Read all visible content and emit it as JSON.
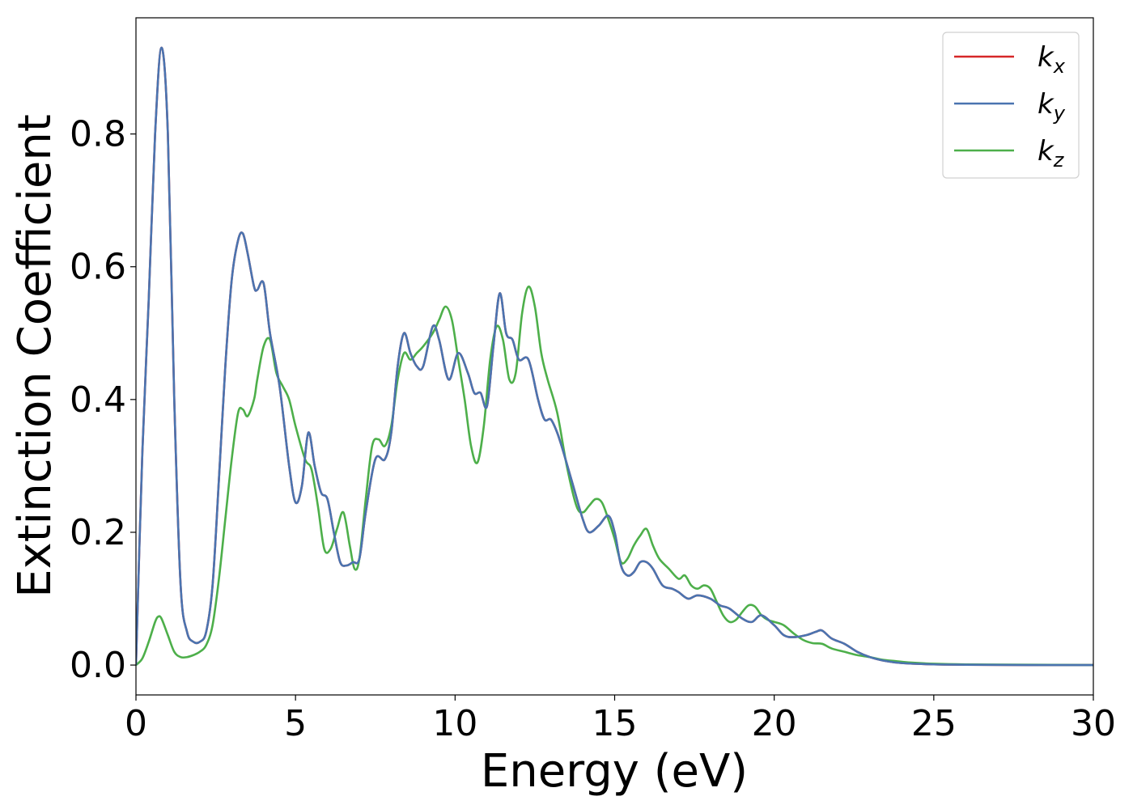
{
  "chart_data": {
    "type": "line",
    "title": "",
    "xlabel": "Energy (eV)",
    "ylabel": "Extinction Coefficient",
    "xlim": [
      0,
      30
    ],
    "ylim": [
      -0.045,
      0.975
    ],
    "xticks": [
      0,
      5,
      10,
      15,
      20,
      25,
      30
    ],
    "xtick_labels": [
      "0",
      "5",
      "10",
      "15",
      "20",
      "25",
      "30"
    ],
    "yticks": [
      0.0,
      0.2,
      0.4,
      0.6,
      0.8
    ],
    "ytick_labels": [
      "0.0",
      "0.2",
      "0.4",
      "0.6",
      "0.8"
    ],
    "grid": false,
    "legend_position": "top-right",
    "series": [
      {
        "name": "k",
        "sub": "x",
        "color": "#d62728",
        "x": [
          0,
          0.2,
          0.4,
          0.6,
          0.8,
          1.0,
          1.2,
          1.4,
          1.6,
          1.8,
          2.0,
          2.2,
          2.4,
          2.6,
          2.8,
          3.0,
          3.2,
          3.35,
          3.5,
          3.7,
          3.8,
          4.0,
          4.2,
          4.5,
          4.8,
          5.0,
          5.2,
          5.4,
          5.6,
          5.8,
          6.0,
          6.2,
          6.4,
          6.6,
          6.8,
          7.0,
          7.2,
          7.5,
          7.8,
          8.0,
          8.2,
          8.4,
          8.6,
          8.8,
          9.0,
          9.3,
          9.5,
          9.8,
          10.1,
          10.4,
          10.6,
          10.8,
          11.0,
          11.2,
          11.4,
          11.6,
          11.8,
          12.0,
          12.3,
          12.6,
          12.8,
          13.0,
          13.2,
          13.4,
          13.7,
          14.0,
          14.2,
          14.5,
          14.8,
          15.0,
          15.2,
          15.4,
          15.6,
          15.8,
          16.0,
          16.2,
          16.5,
          16.8,
          17.0,
          17.3,
          17.6,
          18.0,
          18.3,
          18.6,
          19.0,
          19.3,
          19.6,
          20.0,
          20.3,
          20.6,
          21.0,
          21.3,
          21.5,
          21.8,
          22.2,
          22.6,
          23.0,
          23.5,
          24.0,
          25.0,
          26.0,
          28.0,
          30.0
        ],
        "y": [
          0.0,
          0.32,
          0.55,
          0.8,
          0.93,
          0.8,
          0.4,
          0.12,
          0.05,
          0.035,
          0.035,
          0.05,
          0.12,
          0.28,
          0.45,
          0.58,
          0.64,
          0.65,
          0.62,
          0.57,
          0.565,
          0.575,
          0.5,
          0.42,
          0.3,
          0.245,
          0.27,
          0.35,
          0.3,
          0.26,
          0.25,
          0.2,
          0.155,
          0.15,
          0.155,
          0.16,
          0.23,
          0.31,
          0.31,
          0.35,
          0.45,
          0.5,
          0.47,
          0.45,
          0.45,
          0.51,
          0.49,
          0.43,
          0.47,
          0.44,
          0.41,
          0.41,
          0.39,
          0.48,
          0.56,
          0.5,
          0.49,
          0.46,
          0.46,
          0.4,
          0.37,
          0.37,
          0.35,
          0.32,
          0.27,
          0.22,
          0.2,
          0.21,
          0.225,
          0.2,
          0.15,
          0.135,
          0.14,
          0.155,
          0.155,
          0.145,
          0.12,
          0.115,
          0.11,
          0.1,
          0.105,
          0.1,
          0.09,
          0.085,
          0.07,
          0.065,
          0.075,
          0.06,
          0.045,
          0.042,
          0.045,
          0.05,
          0.052,
          0.04,
          0.032,
          0.02,
          0.012,
          0.006,
          0.003,
          0.001,
          0.0005,
          0.0,
          0.0
        ]
      },
      {
        "name": "k",
        "sub": "y",
        "color": "#4a74b0",
        "x": [
          0,
          0.2,
          0.4,
          0.6,
          0.8,
          1.0,
          1.2,
          1.4,
          1.6,
          1.8,
          2.0,
          2.2,
          2.4,
          2.6,
          2.8,
          3.0,
          3.2,
          3.35,
          3.5,
          3.7,
          3.8,
          4.0,
          4.2,
          4.5,
          4.8,
          5.0,
          5.2,
          5.4,
          5.6,
          5.8,
          6.0,
          6.2,
          6.4,
          6.6,
          6.8,
          7.0,
          7.2,
          7.5,
          7.8,
          8.0,
          8.2,
          8.4,
          8.6,
          8.8,
          9.0,
          9.3,
          9.5,
          9.8,
          10.1,
          10.4,
          10.6,
          10.8,
          11.0,
          11.2,
          11.4,
          11.6,
          11.8,
          12.0,
          12.3,
          12.6,
          12.8,
          13.0,
          13.2,
          13.4,
          13.7,
          14.0,
          14.2,
          14.5,
          14.8,
          15.0,
          15.2,
          15.4,
          15.6,
          15.8,
          16.0,
          16.2,
          16.5,
          16.8,
          17.0,
          17.3,
          17.6,
          18.0,
          18.3,
          18.6,
          19.0,
          19.3,
          19.6,
          20.0,
          20.3,
          20.6,
          21.0,
          21.3,
          21.5,
          21.8,
          22.2,
          22.6,
          23.0,
          23.5,
          24.0,
          25.0,
          26.0,
          28.0,
          30.0
        ],
        "y": [
          0.0,
          0.32,
          0.55,
          0.8,
          0.93,
          0.8,
          0.4,
          0.12,
          0.05,
          0.035,
          0.035,
          0.05,
          0.12,
          0.28,
          0.45,
          0.58,
          0.64,
          0.65,
          0.62,
          0.57,
          0.565,
          0.575,
          0.5,
          0.42,
          0.3,
          0.245,
          0.27,
          0.35,
          0.3,
          0.26,
          0.25,
          0.2,
          0.155,
          0.15,
          0.155,
          0.16,
          0.23,
          0.31,
          0.31,
          0.35,
          0.45,
          0.5,
          0.47,
          0.45,
          0.45,
          0.51,
          0.49,
          0.43,
          0.47,
          0.44,
          0.41,
          0.41,
          0.39,
          0.48,
          0.56,
          0.5,
          0.49,
          0.46,
          0.46,
          0.4,
          0.37,
          0.37,
          0.35,
          0.32,
          0.27,
          0.22,
          0.2,
          0.21,
          0.225,
          0.2,
          0.15,
          0.135,
          0.14,
          0.155,
          0.155,
          0.145,
          0.12,
          0.115,
          0.11,
          0.1,
          0.105,
          0.1,
          0.09,
          0.085,
          0.07,
          0.065,
          0.075,
          0.06,
          0.045,
          0.042,
          0.045,
          0.05,
          0.052,
          0.04,
          0.032,
          0.02,
          0.012,
          0.006,
          0.003,
          0.001,
          0.0005,
          0.0,
          0.0
        ]
      },
      {
        "name": "k",
        "sub": "z",
        "color": "#4daf4a",
        "x": [
          0,
          0.2,
          0.4,
          0.6,
          0.7,
          0.8,
          1.0,
          1.2,
          1.4,
          1.6,
          1.8,
          2.0,
          2.2,
          2.4,
          2.6,
          2.8,
          3.0,
          3.2,
          3.35,
          3.5,
          3.7,
          3.8,
          4.0,
          4.2,
          4.4,
          4.6,
          4.8,
          5.0,
          5.3,
          5.5,
          5.7,
          5.9,
          6.1,
          6.3,
          6.5,
          6.7,
          6.85,
          7.0,
          7.2,
          7.4,
          7.6,
          7.8,
          8.0,
          8.2,
          8.4,
          8.6,
          8.8,
          9.0,
          9.3,
          9.5,
          9.7,
          9.9,
          10.1,
          10.3,
          10.5,
          10.7,
          10.9,
          11.1,
          11.3,
          11.5,
          11.7,
          11.9,
          12.1,
          12.3,
          12.5,
          12.7,
          12.9,
          13.2,
          13.5,
          13.8,
          14.0,
          14.2,
          14.4,
          14.6,
          14.8,
          15.0,
          15.2,
          15.4,
          15.6,
          15.8,
          16.0,
          16.2,
          16.4,
          16.7,
          17.0,
          17.2,
          17.4,
          17.6,
          17.8,
          18.0,
          18.2,
          18.4,
          18.6,
          18.8,
          19.0,
          19.2,
          19.4,
          19.6,
          19.8,
          20.0,
          20.3,
          20.6,
          20.9,
          21.2,
          21.5,
          21.8,
          22.2,
          22.6,
          23.0,
          23.4,
          23.8,
          24.2,
          25.0,
          26.0,
          28.0,
          30.0
        ],
        "y": [
          0.0,
          0.01,
          0.035,
          0.065,
          0.073,
          0.07,
          0.045,
          0.02,
          0.012,
          0.012,
          0.015,
          0.02,
          0.03,
          0.06,
          0.13,
          0.22,
          0.31,
          0.38,
          0.385,
          0.375,
          0.4,
          0.43,
          0.48,
          0.49,
          0.44,
          0.42,
          0.4,
          0.36,
          0.31,
          0.295,
          0.24,
          0.175,
          0.175,
          0.205,
          0.23,
          0.18,
          0.145,
          0.16,
          0.25,
          0.33,
          0.34,
          0.33,
          0.36,
          0.43,
          0.47,
          0.46,
          0.47,
          0.48,
          0.5,
          0.52,
          0.54,
          0.52,
          0.46,
          0.4,
          0.33,
          0.305,
          0.36,
          0.46,
          0.51,
          0.49,
          0.43,
          0.44,
          0.53,
          0.57,
          0.54,
          0.47,
          0.43,
          0.38,
          0.3,
          0.24,
          0.23,
          0.24,
          0.25,
          0.245,
          0.22,
          0.19,
          0.155,
          0.16,
          0.18,
          0.195,
          0.205,
          0.18,
          0.16,
          0.145,
          0.13,
          0.135,
          0.12,
          0.115,
          0.12,
          0.115,
          0.095,
          0.075,
          0.065,
          0.068,
          0.08,
          0.09,
          0.088,
          0.075,
          0.068,
          0.065,
          0.06,
          0.048,
          0.038,
          0.033,
          0.032,
          0.025,
          0.02,
          0.015,
          0.012,
          0.008,
          0.006,
          0.004,
          0.002,
          0.001,
          0.0005,
          0.0
        ]
      }
    ]
  }
}
